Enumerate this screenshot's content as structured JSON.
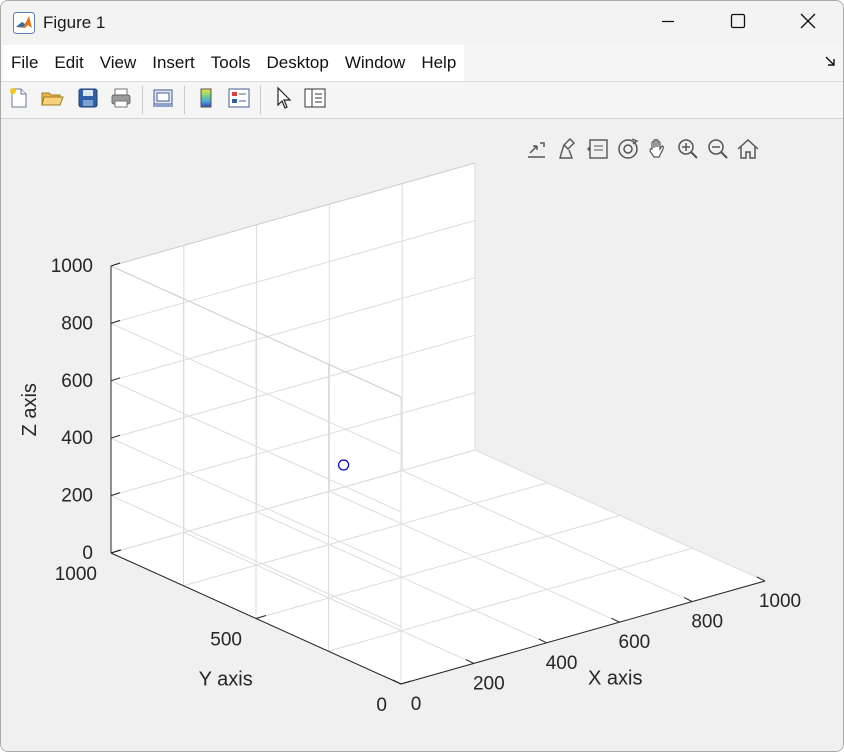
{
  "window": {
    "title": "Figure 1"
  },
  "menu": {
    "items": [
      "File",
      "Edit",
      "View",
      "Insert",
      "Tools",
      "Desktop",
      "Window",
      "Help"
    ]
  },
  "toolbar": {
    "buttons": [
      {
        "name": "new-figure",
        "icon": "new-file-icon"
      },
      {
        "name": "open-file",
        "icon": "folder-open-icon"
      },
      {
        "name": "save-figure",
        "icon": "save-icon"
      },
      {
        "name": "print-figure",
        "icon": "printer-icon"
      },
      {
        "name": "link-plot",
        "icon": "link-plot-icon"
      },
      {
        "name": "insert-colorbar",
        "icon": "colorbar-icon"
      },
      {
        "name": "insert-legend",
        "icon": "legend-icon"
      },
      {
        "name": "edit-plot",
        "icon": "arrow-cursor-icon"
      },
      {
        "name": "property-inspector",
        "icon": "panel-icon"
      }
    ]
  },
  "axes_toolbar": {
    "icons": [
      "export-icon",
      "brush-icon",
      "data-tips-icon",
      "rotate-3d-icon",
      "pan-icon",
      "zoom-in-icon",
      "zoom-out-icon",
      "home-icon"
    ]
  },
  "chart_data": {
    "type": "scatter",
    "dimensions": 3,
    "xlabel": "X axis",
    "ylabel": "Y axis",
    "zlabel": "Z axis",
    "xlim": [
      0,
      1000
    ],
    "ylim": [
      0,
      1000
    ],
    "zlim": [
      0,
      1000
    ],
    "xticks": [
      "0",
      "200",
      "400",
      "600",
      "800",
      "1000"
    ],
    "yticks": [
      "0",
      "500",
      "1000"
    ],
    "zticks": [
      "0",
      "200",
      "400",
      "600",
      "800",
      "1000"
    ],
    "grid": true,
    "marker": "circle",
    "marker_color": "#0000cc",
    "points": [
      {
        "x": 400,
        "y": 700,
        "z": 300
      }
    ]
  }
}
